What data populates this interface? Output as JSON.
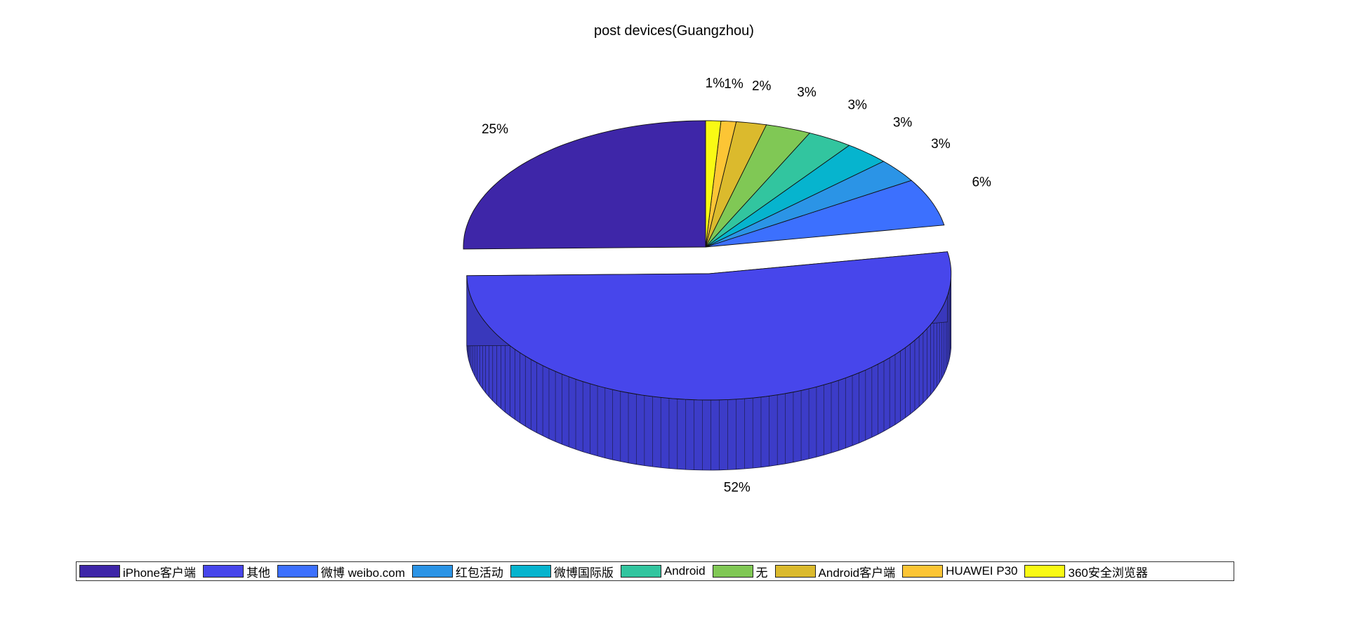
{
  "chart_data": {
    "type": "pie",
    "title": "post devices(Guangzhou)",
    "style": "3d-exploded",
    "exploded_slice": "其他",
    "legend_position": "bottom",
    "slices": [
      {
        "label": "iPhone客户端",
        "value": 25,
        "pct_label": "25%",
        "color": "#3e26a8"
      },
      {
        "label": "其他",
        "value": 52,
        "pct_label": "52%",
        "color": "#4746eb"
      },
      {
        "label": "微博 weibo.com",
        "value": 6,
        "pct_label": "6%",
        "color": "#3c70fe"
      },
      {
        "label": "红包活动",
        "value": 3,
        "pct_label": "3%",
        "color": "#2b94e6"
      },
      {
        "label": "微博国际版",
        "value": 3,
        "pct_label": "3%",
        "color": "#06b4ce"
      },
      {
        "label": "Android",
        "value": 3,
        "pct_label": "3%",
        "color": "#32c59f"
      },
      {
        "label": "无",
        "value": 3,
        "pct_label": "3%",
        "color": "#80c855"
      },
      {
        "label": "Android客户端",
        "value": 2,
        "pct_label": "2%",
        "color": "#dbba2d"
      },
      {
        "label": "HUAWEI P30",
        "value": 1,
        "pct_label": "1%",
        "color": "#fcc535"
      },
      {
        "label": "360安全浏览器",
        "value": 1,
        "pct_label": "1%",
        "color": "#f9fa14"
      }
    ]
  }
}
